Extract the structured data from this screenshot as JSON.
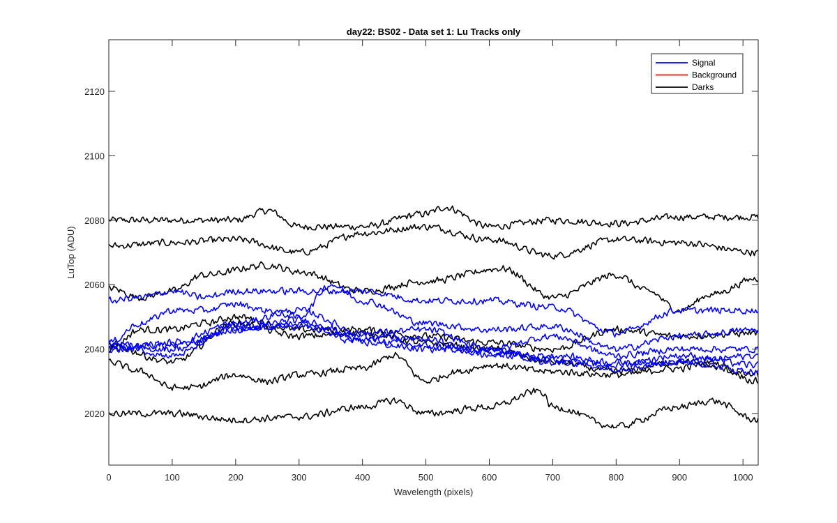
{
  "chart_data": {
    "type": "line",
    "title": "day22: BS02 - Data set 1: Lu Tracks only",
    "xlabel": "Wavelength (pixels)",
    "ylabel": "LuTop (ADU)",
    "xlim": [
      0,
      1024
    ],
    "ylim": [
      2004,
      2136
    ],
    "xticks": [
      0,
      100,
      200,
      300,
      400,
      500,
      600,
      700,
      800,
      900,
      1000
    ],
    "yticks": [
      2020,
      2040,
      2060,
      2080,
      2100,
      2120
    ],
    "grid": false,
    "legend_position": "top-right",
    "legend": [
      {
        "name": "Signal",
        "color": "#0000ff"
      },
      {
        "name": "Background",
        "color": "#ff0000"
      },
      {
        "name": "Darks",
        "color": "#000000"
      }
    ],
    "series": [
      {
        "group": "Darks",
        "color": "#000000",
        "x": [
          0,
          100,
          200,
          250,
          300,
          400,
          500,
          530,
          600,
          700,
          800,
          900,
          1024
        ],
        "values": [
          2080,
          2080,
          2080,
          2083,
          2078,
          2078,
          2082,
          2084,
          2078,
          2080,
          2079,
          2081,
          2081
        ]
      },
      {
        "group": "Darks",
        "color": "#000000",
        "x": [
          0,
          100,
          200,
          300,
          400,
          500,
          600,
          700,
          800,
          900,
          1024
        ],
        "values": [
          2072,
          2073,
          2074,
          2070,
          2076,
          2078,
          2074,
          2069,
          2074,
          2073,
          2070
        ]
      },
      {
        "group": "Darks",
        "color": "#000000",
        "x": [
          0,
          50,
          100,
          150,
          250,
          300,
          400,
          500,
          620,
          700,
          800,
          850,
          900,
          950,
          1024
        ],
        "values": [
          2059,
          2056,
          2058,
          2063,
          2066,
          2064,
          2058,
          2061,
          2065,
          2056,
          2063,
          2058,
          2052,
          2057,
          2062
        ]
      },
      {
        "group": "Darks",
        "color": "#000000",
        "x": [
          0,
          50,
          100,
          150,
          200,
          300,
          400,
          500,
          600,
          700,
          800,
          900,
          1024
        ],
        "values": [
          2040,
          2046,
          2046,
          2048,
          2050,
          2046,
          2046,
          2044,
          2042,
          2040,
          2046,
          2044,
          2045
        ]
      },
      {
        "group": "Darks",
        "color": "#000000",
        "x": [
          0,
          100,
          200,
          300,
          400,
          500,
          600,
          700,
          800,
          900,
          1024
        ],
        "values": [
          2041,
          2036,
          2048,
          2044,
          2045,
          2042,
          2040,
          2036,
          2033,
          2036,
          2032
        ]
      },
      {
        "group": "Darks",
        "color": "#000000",
        "x": [
          0,
          50,
          100,
          130,
          200,
          250,
          300,
          400,
          450,
          500,
          550,
          600,
          700,
          800,
          900,
          950,
          1024
        ],
        "values": [
          2036,
          2033,
          2028,
          2028,
          2032,
          2030,
          2032,
          2034,
          2038,
          2030,
          2033,
          2035,
          2033,
          2032,
          2034,
          2036,
          2030
        ]
      },
      {
        "group": "Darks",
        "color": "#000000",
        "x": [
          0,
          100,
          200,
          300,
          400,
          450,
          500,
          600,
          680,
          700,
          800,
          900,
          950,
          1024
        ],
        "values": [
          2020,
          2020,
          2018,
          2019,
          2022,
          2024,
          2020,
          2022,
          2027,
          2022,
          2016,
          2022,
          2024,
          2018
        ]
      },
      {
        "group": "Signal",
        "color": "#0000ff",
        "x": [
          0,
          50,
          100,
          150,
          200,
          300,
          400,
          500,
          600,
          700,
          800,
          900,
          1024
        ],
        "values": [
          2055,
          2056,
          2058,
          2056,
          2058,
          2058,
          2058,
          2055,
          2055,
          2053,
          2045,
          2052,
          2052
        ]
      },
      {
        "group": "Signal",
        "color": "#0000ff",
        "x": [
          0,
          50,
          100,
          150,
          200,
          250,
          300,
          350,
          400,
          500,
          600,
          700,
          800,
          900,
          1024
        ],
        "values": [
          2042,
          2048,
          2052,
          2052,
          2054,
          2052,
          2050,
          2060,
          2055,
          2048,
          2046,
          2047,
          2040,
          2044,
          2046
        ]
      },
      {
        "group": "Signal",
        "color": "#0000ff",
        "x": [
          0,
          100,
          200,
          300,
          400,
          500,
          600,
          700,
          800,
          900,
          1024
        ],
        "values": [
          2040,
          2042,
          2048,
          2052,
          2045,
          2046,
          2040,
          2044,
          2038,
          2040,
          2040
        ]
      },
      {
        "group": "Signal",
        "color": "#0000ff",
        "x": [
          0,
          100,
          200,
          300,
          400,
          500,
          600,
          700,
          800,
          900,
          1024
        ],
        "values": [
          2040,
          2040,
          2046,
          2049,
          2044,
          2043,
          2038,
          2038,
          2036,
          2036,
          2038
        ]
      },
      {
        "group": "Signal",
        "color": "#0000ff",
        "x": [
          0,
          100,
          200,
          300,
          400,
          500,
          600,
          700,
          800,
          900,
          1024
        ],
        "values": [
          2042,
          2038,
          2047,
          2047,
          2042,
          2040,
          2040,
          2036,
          2035,
          2038,
          2035
        ]
      },
      {
        "group": "Signal",
        "color": "#0000ff",
        "x": [
          0,
          100,
          200,
          300,
          400,
          500,
          600,
          700,
          800,
          900,
          1024
        ],
        "values": [
          2041,
          2041,
          2046,
          2048,
          2043,
          2041,
          2039,
          2037,
          2034,
          2036,
          2033
        ]
      }
    ]
  }
}
